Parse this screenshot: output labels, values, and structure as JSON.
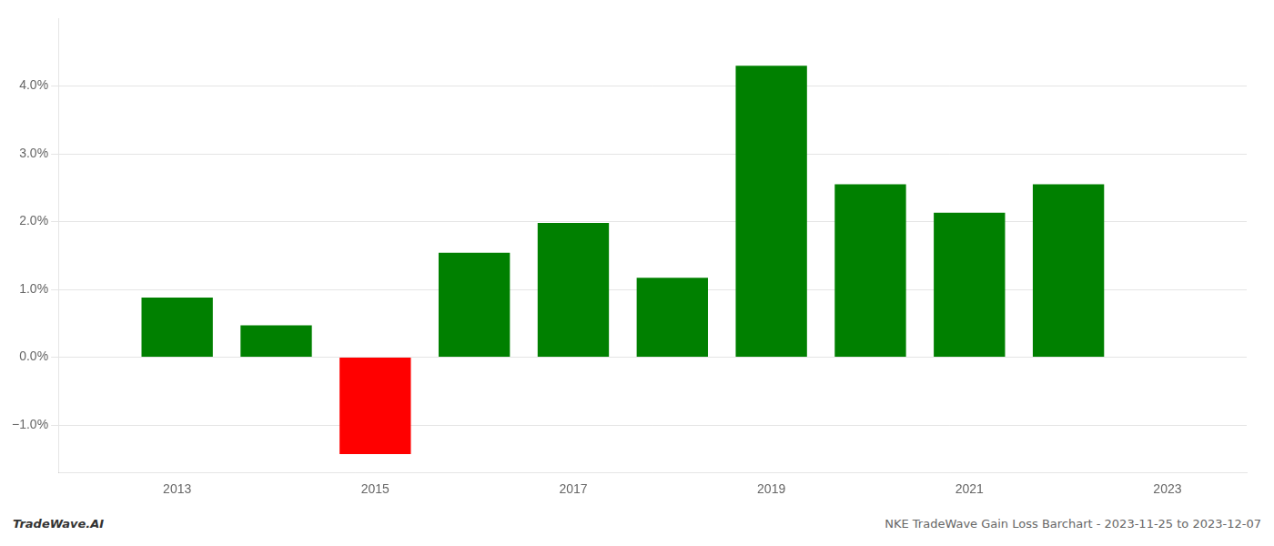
{
  "chart_data": {
    "type": "bar",
    "x": [
      2013,
      2014,
      2015,
      2016,
      2017,
      2018,
      2019,
      2020,
      2021,
      2022
    ],
    "values": [
      0.0088,
      0.0047,
      -0.0143,
      0.0154,
      0.0198,
      0.0117,
      0.043,
      0.0255,
      0.0213,
      0.0255
    ],
    "colors": [
      "#008000",
      "#008000",
      "#ff0000",
      "#008000",
      "#008000",
      "#008000",
      "#008000",
      "#008000",
      "#008000",
      "#008000"
    ],
    "xlim": [
      2011.8,
      2023.8
    ],
    "xticks": [
      2013,
      2015,
      2017,
      2019,
      2021,
      2023
    ],
    "ylim": [
      -0.017,
      0.05
    ],
    "yticks": [
      {
        "value": -0.01,
        "label": "−1.0%"
      },
      {
        "value": 0.0,
        "label": "0.0%"
      },
      {
        "value": 0.01,
        "label": "1.0%"
      },
      {
        "value": 0.02,
        "label": "2.0%"
      },
      {
        "value": 0.03,
        "label": "3.0%"
      },
      {
        "value": 0.04,
        "label": "4.0%"
      }
    ],
    "grid": true,
    "annotations": [
      "TradeWave.AI",
      "NKE TradeWave Gain Loss Barchart - 2023-11-25 to 2023-12-07"
    ]
  }
}
